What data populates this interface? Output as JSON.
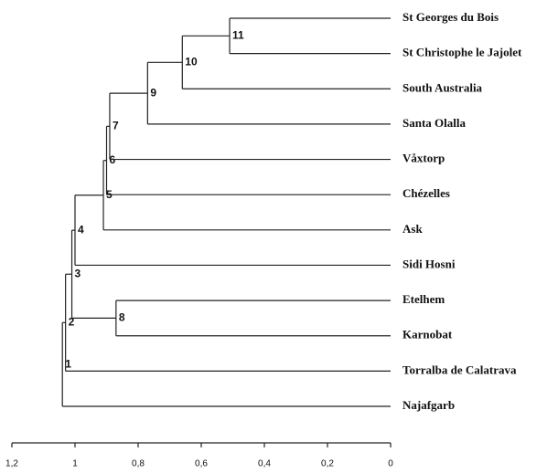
{
  "chart_data": {
    "type": "dendrogram",
    "leaves": [
      "St Georges du Bois",
      "St Christophe le Jajolet",
      "South Australia",
      "Santa Olalla",
      "Våxtorp",
      "Chézelles",
      "Ask",
      "Sidi Hosni",
      "Etelhem",
      "Karnobat",
      "Torralba de Calatrava",
      "Najafgarb"
    ],
    "nodes": [
      {
        "label": "1",
        "height": 1.04,
        "children": [
          "2",
          "Najafgarb"
        ]
      },
      {
        "label": "2",
        "height": 1.03,
        "children": [
          "3",
          "Torralba de Calatrava"
        ]
      },
      {
        "label": "3",
        "height": 1.01,
        "children": [
          "4",
          "8"
        ]
      },
      {
        "label": "4",
        "height": 1.0,
        "children": [
          "5",
          "Sidi Hosni"
        ]
      },
      {
        "label": "5",
        "height": 0.91,
        "children": [
          "6",
          "Ask"
        ]
      },
      {
        "label": "6",
        "height": 0.9,
        "children": [
          "7",
          "Chézelles"
        ]
      },
      {
        "label": "7",
        "height": 0.89,
        "children": [
          "9",
          "Våxtorp"
        ]
      },
      {
        "label": "8",
        "height": 0.87,
        "children": [
          "Etelhem",
          "Karnobat"
        ]
      },
      {
        "label": "9",
        "height": 0.77,
        "children": [
          "10",
          "Santa Olalla"
        ]
      },
      {
        "label": "10",
        "height": 0.66,
        "children": [
          "11",
          "South Australia"
        ]
      },
      {
        "label": "11",
        "height": 0.51,
        "children": [
          "St Georges du Bois",
          "St Christophe le Jajolet"
        ]
      }
    ],
    "xlim": [
      1.2,
      0
    ],
    "xticks": [
      {
        "value": 1.2,
        "label": "1,2"
      },
      1,
      {
        "value": 0.8,
        "label": "0,8"
      },
      {
        "value": 0.6,
        "label": "0,6"
      },
      {
        "value": 0.4,
        "label": "0,4"
      },
      {
        "value": 0.2,
        "label": "0,2"
      },
      0
    ]
  }
}
